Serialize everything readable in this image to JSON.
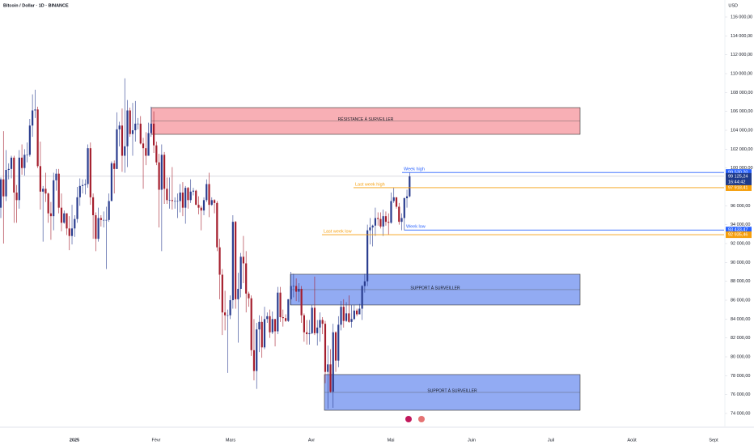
{
  "chart_data": {
    "type": "candlestick",
    "title": "Bitcoin / Dollar · 1D · BINANCE",
    "currency": "USD",
    "ylim": [
      72543,
      117800
    ],
    "yticks": [
      {
        "value": 74000,
        "label": "74 000,00"
      },
      {
        "value": 76000,
        "label": "76 000,00"
      },
      {
        "value": 78000,
        "label": "78 000,00"
      },
      {
        "value": 80000,
        "label": "80 000,00"
      },
      {
        "value": 82000,
        "label": "82 000,00"
      },
      {
        "value": 84000,
        "label": "84 000,00"
      },
      {
        "value": 86000,
        "label": "86 000,00"
      },
      {
        "value": 88000,
        "label": "88 000,00"
      },
      {
        "value": 90000,
        "label": "90 000,00"
      },
      {
        "value": 92000,
        "label": "92 000,00"
      },
      {
        "value": 94000,
        "label": "94 000,00"
      },
      {
        "value": 96000,
        "label": "96 000,00"
      },
      {
        "value": 98000,
        "label": "98 000,00"
      },
      {
        "value": 100000,
        "label": "100 000,00"
      },
      {
        "value": 102000,
        "label": "102 000,00"
      },
      {
        "value": 104000,
        "label": "104 000,00"
      },
      {
        "value": 106000,
        "label": "106 000,00"
      },
      {
        "value": 108000,
        "label": "108 000,00"
      },
      {
        "value": 110000,
        "label": "110 000,00"
      },
      {
        "value": 112000,
        "label": "112 000,00"
      },
      {
        "value": 114000,
        "label": "114 000,00"
      },
      {
        "value": 116000,
        "label": "116 000,00"
      }
    ],
    "x_labels": [
      "2025",
      "Févr",
      "Mars",
      "Avr",
      "Mai",
      "Juin",
      "Juil",
      "Août",
      "Sept"
    ],
    "up_color": "#2a3d8f",
    "down_color": "#a51e2d",
    "candles": [
      [
        95800,
        99000,
        94700,
        98800
      ],
      [
        98800,
        103900,
        92000,
        97000
      ],
      [
        97000,
        101900,
        96500,
        99800
      ],
      [
        99800,
        100500,
        98800,
        99900
      ],
      [
        99900,
        101300,
        98900,
        101100
      ],
      [
        101100,
        101300,
        94200,
        97400
      ],
      [
        97400,
        98200,
        94200,
        96600
      ],
      [
        96600,
        101900,
        95700,
        101100
      ],
      [
        101100,
        102500,
        99300,
        100000
      ],
      [
        100000,
        102000,
        99200,
        101400
      ],
      [
        101400,
        102700,
        100600,
        101400
      ],
      [
        101400,
        105200,
        101200,
        104500
      ],
      [
        104500,
        107800,
        103300,
        106100
      ],
      [
        106100,
        108300,
        105300,
        106200
      ],
      [
        106200,
        106500,
        100000,
        100200
      ],
      [
        100200,
        102800,
        95600,
        97500
      ],
      [
        97500,
        98100,
        92200,
        97800
      ],
      [
        97800,
        99500,
        96400,
        97300
      ],
      [
        97300,
        97400,
        94200,
        95200
      ],
      [
        95200,
        96400,
        92400,
        94900
      ],
      [
        94900,
        99500,
        93400,
        98700
      ],
      [
        98700,
        99900,
        97600,
        99400
      ],
      [
        99400,
        99900,
        95200,
        95800
      ],
      [
        95800,
        97300,
        93300,
        94200
      ],
      [
        94200,
        95500,
        94100,
        95200
      ],
      [
        95200,
        95200,
        92900,
        93600
      ],
      [
        93600,
        94900,
        91300,
        92800
      ],
      [
        92800,
        96100,
        91900,
        93600
      ],
      [
        93600,
        95000,
        92700,
        94600
      ],
      [
        94600,
        98000,
        94200,
        96900
      ],
      [
        96900,
        98900,
        96000,
        98100
      ],
      [
        98100,
        98800,
        97300,
        98200
      ],
      [
        98200,
        98800,
        97200,
        98300
      ],
      [
        98300,
        102500,
        97900,
        102100
      ],
      [
        102100,
        102700,
        96100,
        96900
      ],
      [
        96900,
        97300,
        92500,
        95000
      ],
      [
        95000,
        95300,
        91200,
        92500
      ],
      [
        92500,
        95800,
        92200,
        94700
      ],
      [
        94700,
        95000,
        93800,
        94500
      ],
      [
        94500,
        95400,
        93700,
        94500
      ],
      [
        94500,
        95900,
        89300,
        94500
      ],
      [
        94500,
        97300,
        94300,
        96500
      ],
      [
        96500,
        100700,
        96500,
        100500
      ],
      [
        100500,
        100800,
        97300,
        99900
      ],
      [
        99900,
        105900,
        99900,
        104100
      ],
      [
        104100,
        104900,
        102300,
        104500
      ],
      [
        104500,
        106300,
        99600,
        101300
      ],
      [
        101300,
        109500,
        99500,
        102300
      ],
      [
        102300,
        107200,
        100100,
        106100
      ],
      [
        106100,
        106400,
        103300,
        103600
      ],
      [
        103600,
        106900,
        101300,
        104000
      ],
      [
        104000,
        107100,
        102800,
        104700
      ],
      [
        104700,
        105300,
        104100,
        104700
      ],
      [
        104700,
        105500,
        102500,
        102600
      ],
      [
        102600,
        103200,
        97800,
        102100
      ],
      [
        102100,
        103800,
        100300,
        101300
      ],
      [
        101300,
        104800,
        101300,
        103700
      ],
      [
        103700,
        106500,
        103300,
        104700
      ],
      [
        104700,
        106000,
        101600,
        102400
      ],
      [
        102400,
        102800,
        100300,
        100600
      ],
      [
        100600,
        101500,
        93700,
        97700
      ],
      [
        97700,
        102500,
        91200,
        101400
      ],
      [
        101400,
        101700,
        96200,
        97800
      ],
      [
        97800,
        99000,
        96200,
        96600
      ],
      [
        96600,
        99000,
        95700,
        96600
      ],
      [
        96600,
        100100,
        95600,
        96500
      ],
      [
        96500,
        96900,
        95700,
        96500
      ],
      [
        96500,
        97300,
        94700,
        96500
      ],
      [
        96500,
        98300,
        95300,
        97400
      ],
      [
        97400,
        98500,
        94900,
        95800
      ],
      [
        95800,
        98100,
        94100,
        97900
      ],
      [
        97900,
        98000,
        95700,
        96600
      ],
      [
        96600,
        98800,
        96300,
        97500
      ],
      [
        97500,
        97900,
        97100,
        97600
      ],
      [
        97600,
        97700,
        96100,
        96100
      ],
      [
        96100,
        97000,
        95100,
        95800
      ],
      [
        95800,
        96000,
        93400,
        95500
      ],
      [
        95500,
        96900,
        95000,
        96600
      ],
      [
        96600,
        98800,
        96400,
        98300
      ],
      [
        98300,
        99500,
        94800,
        96100
      ],
      [
        96100,
        96900,
        96000,
        96600
      ],
      [
        96600,
        96700,
        95200,
        96300
      ],
      [
        96300,
        96500,
        91200,
        91600
      ],
      [
        91600,
        92500,
        86100,
        88700
      ],
      [
        88700,
        89300,
        82300,
        84700
      ],
      [
        84700,
        87000,
        82800,
        84400
      ],
      [
        84400,
        85000,
        78300,
        84400
      ],
      [
        84400,
        86500,
        84000,
        86000
      ],
      [
        86000,
        95000,
        85100,
        94300
      ],
      [
        94300,
        94400,
        85100,
        86100
      ],
      [
        86100,
        88900,
        81500,
        87200
      ],
      [
        87200,
        91000,
        86300,
        90600
      ],
      [
        90600,
        92800,
        87800,
        89900
      ],
      [
        89900,
        91200,
        84700,
        86700
      ],
      [
        86700,
        86900,
        85300,
        86200
      ],
      [
        86200,
        86500,
        80100,
        80700
      ],
      [
        80700,
        84000,
        77500,
        78500
      ],
      [
        78500,
        83600,
        76600,
        82900
      ],
      [
        82900,
        84400,
        80500,
        83700
      ],
      [
        83700,
        84300,
        79900,
        81000
      ],
      [
        81000,
        85300,
        80800,
        84000
      ],
      [
        84000,
        84700,
        83600,
        84300
      ],
      [
        84300,
        85000,
        82000,
        82600
      ],
      [
        82600,
        84800,
        82400,
        84000
      ],
      [
        84000,
        84000,
        81100,
        82700
      ],
      [
        82700,
        87400,
        82400,
        86800
      ],
      [
        86800,
        87400,
        83700,
        84200
      ],
      [
        84200,
        85000,
        83200,
        84100
      ],
      [
        84100,
        84500,
        83700,
        83800
      ],
      [
        83800,
        86100,
        83700,
        86100
      ],
      [
        86100,
        89000,
        85500,
        87500
      ],
      [
        87500,
        88800,
        86300,
        87500
      ],
      [
        87500,
        88300,
        85900,
        86900
      ],
      [
        86900,
        87800,
        85800,
        87200
      ],
      [
        87200,
        87500,
        83600,
        84400
      ],
      [
        84400,
        84600,
        81600,
        82600
      ],
      [
        82600,
        83900,
        81300,
        82400
      ],
      [
        82400,
        83900,
        81300,
        82500
      ],
      [
        82500,
        85500,
        82400,
        85200
      ],
      [
        85200,
        88500,
        82300,
        82500
      ],
      [
        82500,
        83900,
        81200,
        83100
      ],
      [
        83100,
        84700,
        81600,
        83900
      ],
      [
        83900,
        84200,
        82400,
        83500
      ],
      [
        83500,
        83800,
        77200,
        78400
      ],
      [
        78400,
        81200,
        74500,
        79200
      ],
      [
        79200,
        80800,
        76200,
        76300
      ],
      [
        76300,
        83500,
        74600,
        82600
      ],
      [
        82600,
        82700,
        78400,
        79600
      ],
      [
        79600,
        84300,
        78900,
        83400
      ],
      [
        83400,
        85900,
        82800,
        85300
      ],
      [
        85300,
        86100,
        83100,
        83800
      ],
      [
        83800,
        85800,
        83700,
        84600
      ],
      [
        84600,
        86500,
        83600,
        83700
      ],
      [
        83700,
        85500,
        83100,
        84000
      ],
      [
        84000,
        85500,
        83900,
        84900
      ],
      [
        84900,
        85100,
        84300,
        84500
      ],
      [
        84500,
        85600,
        84500,
        85100
      ],
      [
        85100,
        87600,
        83900,
        87500
      ],
      [
        87500,
        88800,
        86800,
        88000
      ],
      [
        88000,
        94000,
        87500,
        93400
      ],
      [
        93400,
        94700,
        91900,
        93700
      ],
      [
        93700,
        94000,
        91700,
        93900
      ],
      [
        93900,
        95800,
        92800,
        94700
      ],
      [
        94700,
        95300,
        93900,
        94600
      ],
      [
        94600,
        95300,
        93600,
        93800
      ],
      [
        93800,
        95600,
        92800,
        94900
      ],
      [
        94900,
        95400,
        93900,
        94300
      ],
      [
        94300,
        95200,
        92900,
        94200
      ],
      [
        94200,
        97400,
        94100,
        96500
      ],
      [
        96500,
        97900,
        96300,
        96900
      ],
      [
        96900,
        96900,
        95700,
        95900
      ],
      [
        95900,
        96300,
        94000,
        94300
      ],
      [
        94300,
        95200,
        93400,
        94700
      ],
      [
        94700,
        96900,
        93400,
        96800
      ],
      [
        96800,
        97700,
        95800,
        97000
      ],
      [
        97000,
        99530,
        96900,
        99125
      ]
    ],
    "zones": [
      {
        "label": "RÉSISTANCE À SURVEILLER",
        "low": 103570,
        "high": 106400,
        "color": "#f7a1a8"
      },
      {
        "label": "SUPPORT À SURVEILLER",
        "low": 85490,
        "high": 88745,
        "color": "#7f9cf1"
      },
      {
        "label": "SUPPORT À SURVEILLER",
        "low": 74340,
        "high": 78120,
        "color": "#7f9cf1"
      }
    ],
    "levels": [
      {
        "label": "Week high",
        "value": 99530.2,
        "value_label": "99 530,20",
        "color": "#2962ff"
      },
      {
        "label": "Last week high",
        "value": 97918.41,
        "value_label": "97 918,41",
        "color": "#f59e0b"
      },
      {
        "label": "Week low",
        "value": 93433.47,
        "value_label": "93 433,47",
        "color": "#2962ff"
      },
      {
        "label": "Last week low",
        "value": 92935.46,
        "value_label": "92 935,46",
        "color": "#f59e0b"
      }
    ],
    "last_price": {
      "value": 99125.24,
      "value_label": "99 125,24",
      "countdown": "16:44:42",
      "color": "#1e3a8a"
    }
  }
}
